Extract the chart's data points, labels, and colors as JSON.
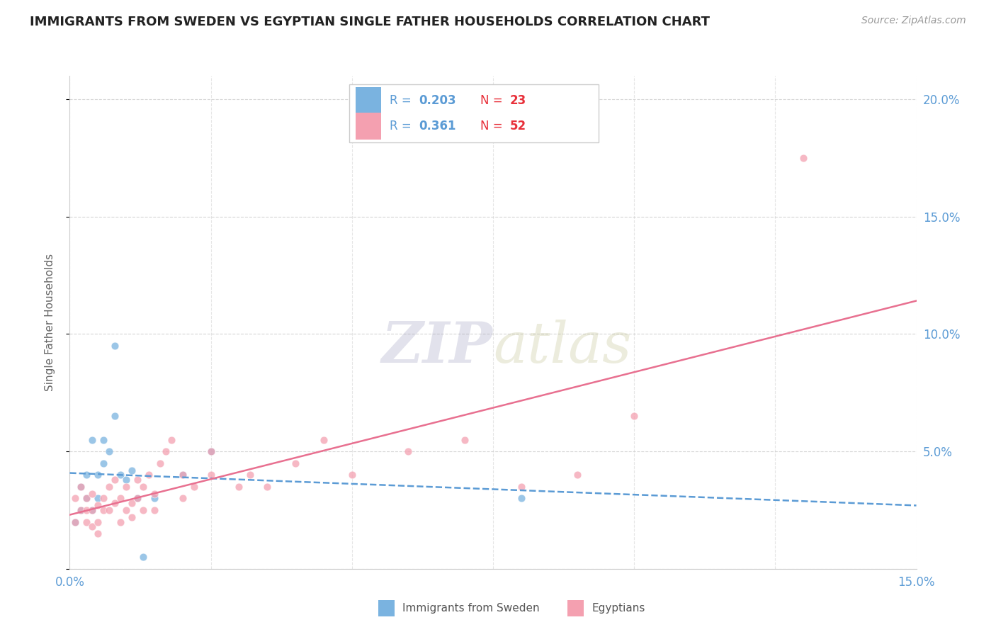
{
  "title": "IMMIGRANTS FROM SWEDEN VS EGYPTIAN SINGLE FATHER HOUSEHOLDS CORRELATION CHART",
  "source": "Source: ZipAtlas.com",
  "ylabel": "Single Father Households",
  "xlim": [
    0.0,
    0.15
  ],
  "ylim": [
    0.0,
    0.21
  ],
  "yticks_right": [
    0.0,
    0.05,
    0.1,
    0.15,
    0.2
  ],
  "ytick_labels_right": [
    "",
    "5.0%",
    "10.0%",
    "15.0%",
    "20.0%"
  ],
  "xticks": [
    0.0,
    0.025,
    0.05,
    0.075,
    0.1,
    0.125,
    0.15
  ],
  "grid_color": "#cccccc",
  "background_color": "#ffffff",
  "title_color": "#222222",
  "axis_label_color": "#5b9bd5",
  "series": [
    {
      "label": "Immigrants from Sweden",
      "R": "0.203",
      "N": "23",
      "marker_color": "#7ab3e0",
      "line_color": "#5b9bd5",
      "line_style": "--",
      "x": [
        0.001,
        0.002,
        0.002,
        0.003,
        0.003,
        0.004,
        0.004,
        0.005,
        0.005,
        0.006,
        0.006,
        0.007,
        0.008,
        0.008,
        0.009,
        0.01,
        0.011,
        0.012,
        0.013,
        0.015,
        0.02,
        0.025,
        0.08
      ],
      "y": [
        0.02,
        0.035,
        0.025,
        0.04,
        0.03,
        0.055,
        0.025,
        0.04,
        0.03,
        0.055,
        0.045,
        0.05,
        0.065,
        0.095,
        0.04,
        0.038,
        0.042,
        0.03,
        0.005,
        0.03,
        0.04,
        0.05,
        0.03
      ]
    },
    {
      "label": "Egyptians",
      "R": "0.361",
      "N": "52",
      "marker_color": "#f4a0b0",
      "line_color": "#e87090",
      "line_style": "-",
      "x": [
        0.001,
        0.001,
        0.002,
        0.002,
        0.003,
        0.003,
        0.003,
        0.004,
        0.004,
        0.004,
        0.005,
        0.005,
        0.005,
        0.006,
        0.006,
        0.007,
        0.007,
        0.008,
        0.008,
        0.009,
        0.009,
        0.01,
        0.01,
        0.011,
        0.011,
        0.012,
        0.012,
        0.013,
        0.013,
        0.014,
        0.015,
        0.015,
        0.016,
        0.017,
        0.018,
        0.02,
        0.02,
        0.022,
        0.025,
        0.025,
        0.03,
        0.032,
        0.035,
        0.04,
        0.045,
        0.05,
        0.06,
        0.07,
        0.08,
        0.09,
        0.1,
        0.13
      ],
      "y": [
        0.02,
        0.03,
        0.025,
        0.035,
        0.02,
        0.025,
        0.03,
        0.025,
        0.032,
        0.018,
        0.02,
        0.027,
        0.015,
        0.025,
        0.03,
        0.025,
        0.035,
        0.028,
        0.038,
        0.02,
        0.03,
        0.025,
        0.035,
        0.022,
        0.028,
        0.03,
        0.038,
        0.025,
        0.035,
        0.04,
        0.025,
        0.032,
        0.045,
        0.05,
        0.055,
        0.03,
        0.04,
        0.035,
        0.04,
        0.05,
        0.035,
        0.04,
        0.035,
        0.045,
        0.055,
        0.04,
        0.05,
        0.055,
        0.035,
        0.04,
        0.065,
        0.175
      ]
    }
  ],
  "legend_R_color": "#5b9bd5",
  "legend_N_color": "#e8303a"
}
